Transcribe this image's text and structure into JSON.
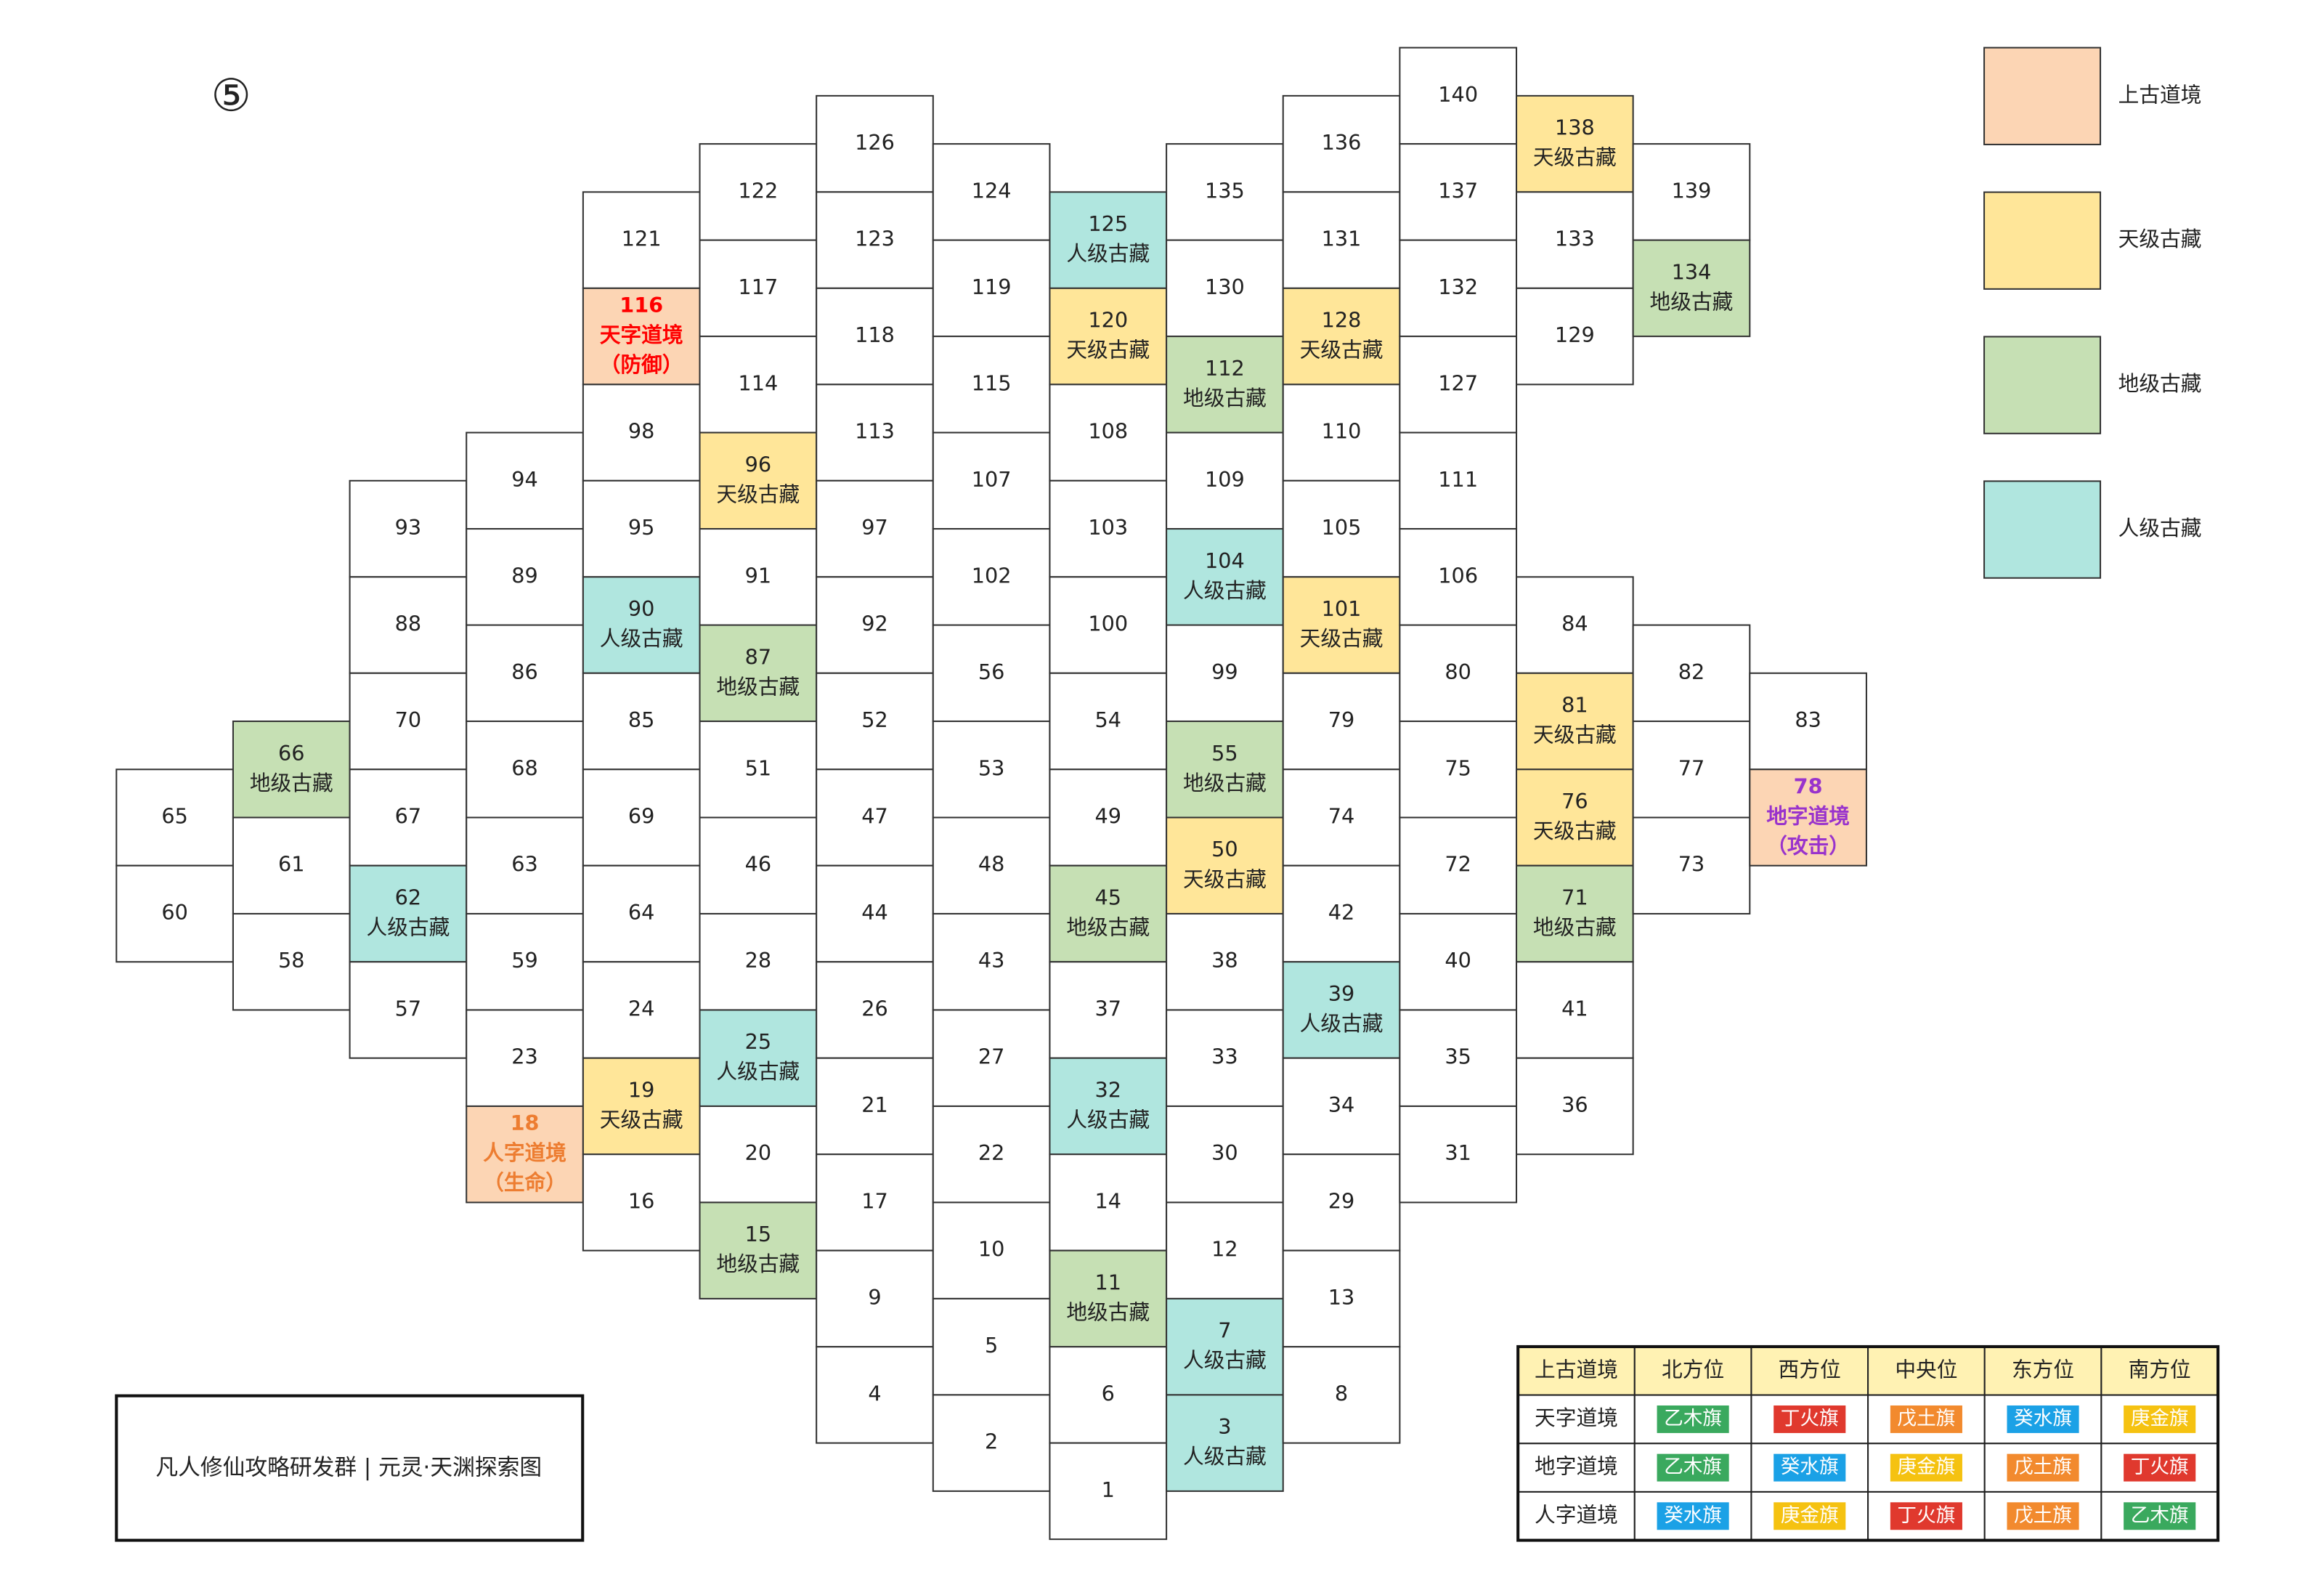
{
  "title_mark": "⑤",
  "caption": "凡人修仙攻略研发群 | 元灵·天渊探索图",
  "legend": [
    {
      "label": "上古道境",
      "color": "#fcd5b4"
    },
    {
      "label": "天级古藏",
      "color": "#ffe699"
    },
    {
      "label": "地级古藏",
      "color": "#c6e0b4"
    },
    {
      "label": "人级古藏",
      "color": "#b0e6df"
    }
  ],
  "columns": [
    [
      {
        "n": "65"
      },
      {
        "n": "60"
      }
    ],
    [
      {
        "n": "66",
        "t": "地级古藏",
        "k": 2
      },
      {
        "n": "61"
      },
      {
        "n": "58"
      }
    ],
    [
      {
        "n": "93"
      },
      {
        "n": "88"
      },
      {
        "n": "70"
      },
      {
        "n": "67"
      },
      {
        "n": "62",
        "t": "人级古藏",
        "k": 3
      },
      {
        "n": "57"
      }
    ],
    [
      {
        "n": "94"
      },
      {
        "n": "89"
      },
      {
        "n": "86"
      },
      {
        "n": "68"
      },
      {
        "n": "63"
      },
      {
        "n": "59"
      },
      {
        "n": "23"
      },
      {
        "n": "18",
        "t": "人字道境",
        "s": "（生命）",
        "k": 0,
        "c": "#ed7d31"
      }
    ],
    [
      {
        "n": "121"
      },
      {
        "n": "116",
        "t": "天字道境",
        "s": "（防御）",
        "k": 0,
        "c": "#ff0000"
      },
      {
        "n": "98"
      },
      {
        "n": "95"
      },
      {
        "n": "90",
        "t": "人级古藏",
        "k": 3
      },
      {
        "n": "85"
      },
      {
        "n": "69"
      },
      {
        "n": "64"
      },
      {
        "n": "24"
      },
      {
        "n": "19",
        "t": "天级古藏",
        "k": 1
      },
      {
        "n": "16"
      }
    ],
    [
      {
        "n": "122"
      },
      {
        "n": "117"
      },
      {
        "n": "114"
      },
      {
        "n": "96",
        "t": "天级古藏",
        "k": 1
      },
      {
        "n": "91"
      },
      {
        "n": "87",
        "t": "地级古藏",
        "k": 2
      },
      {
        "n": "51"
      },
      {
        "n": "46"
      },
      {
        "n": "28"
      },
      {
        "n": "25",
        "t": "人级古藏",
        "k": 3
      },
      {
        "n": "20"
      },
      {
        "n": "15",
        "t": "地级古藏",
        "k": 2
      }
    ],
    [
      {
        "n": "126"
      },
      {
        "n": "123"
      },
      {
        "n": "118"
      },
      {
        "n": "113"
      },
      {
        "n": "97"
      },
      {
        "n": "92"
      },
      {
        "n": "52"
      },
      {
        "n": "47"
      },
      {
        "n": "44"
      },
      {
        "n": "26"
      },
      {
        "n": "21"
      },
      {
        "n": "17"
      },
      {
        "n": "9"
      },
      {
        "n": "4"
      }
    ],
    [
      {
        "n": "124"
      },
      {
        "n": "119"
      },
      {
        "n": "115"
      },
      {
        "n": "107"
      },
      {
        "n": "102"
      },
      {
        "n": "56"
      },
      {
        "n": "53"
      },
      {
        "n": "48"
      },
      {
        "n": "43"
      },
      {
        "n": "27"
      },
      {
        "n": "22"
      },
      {
        "n": "10"
      },
      {
        "n": "5"
      },
      {
        "n": "2"
      }
    ],
    [
      {
        "n": "125",
        "t": "人级古藏",
        "k": 3
      },
      {
        "n": "120",
        "t": "天级古藏",
        "k": 1
      },
      {
        "n": "108"
      },
      {
        "n": "103"
      },
      {
        "n": "100"
      },
      {
        "n": "54"
      },
      {
        "n": "49"
      },
      {
        "n": "45",
        "t": "地级古藏",
        "k": 2
      },
      {
        "n": "37"
      },
      {
        "n": "32",
        "t": "人级古藏",
        "k": 3
      },
      {
        "n": "14"
      },
      {
        "n": "11",
        "t": "地级古藏",
        "k": 2
      },
      {
        "n": "6"
      },
      {
        "n": "1"
      }
    ],
    [
      {
        "n": "135"
      },
      {
        "n": "130"
      },
      {
        "n": "112",
        "t": "地级古藏",
        "k": 2
      },
      {
        "n": "109"
      },
      {
        "n": "104",
        "t": "人级古藏",
        "k": 3
      },
      {
        "n": "99"
      },
      {
        "n": "55",
        "t": "地级古藏",
        "k": 2
      },
      {
        "n": "50",
        "t": "天级古藏",
        "k": 1
      },
      {
        "n": "38"
      },
      {
        "n": "33"
      },
      {
        "n": "30"
      },
      {
        "n": "12"
      },
      {
        "n": "7",
        "t": "人级古藏",
        "k": 3
      },
      {
        "n": "3",
        "t": "人级古藏",
        "k": 3
      }
    ],
    [
      {
        "n": "136"
      },
      {
        "n": "131"
      },
      {
        "n": "128",
        "t": "天级古藏",
        "k": 1
      },
      {
        "n": "110"
      },
      {
        "n": "105"
      },
      {
        "n": "101",
        "t": "天级古藏",
        "k": 1
      },
      {
        "n": "79"
      },
      {
        "n": "74"
      },
      {
        "n": "42"
      },
      {
        "n": "39",
        "t": "人级古藏",
        "k": 3
      },
      {
        "n": "34"
      },
      {
        "n": "29"
      },
      {
        "n": "13"
      },
      {
        "n": "8"
      }
    ],
    [
      {
        "n": "140"
      },
      {
        "n": "137"
      },
      {
        "n": "132"
      },
      {
        "n": "127"
      },
      {
        "n": "111"
      },
      {
        "n": "106"
      },
      {
        "n": "80"
      },
      {
        "n": "75"
      },
      {
        "n": "72"
      },
      {
        "n": "40"
      },
      {
        "n": "35"
      },
      {
        "n": "31"
      }
    ],
    [
      {
        "n": "138",
        "t": "天级古藏",
        "k": 1
      },
      {
        "n": "133"
      },
      {
        "n": "129"
      },
      {
        "n": "84"
      },
      {
        "n": "81",
        "t": "天级古藏",
        "k": 1
      },
      {
        "n": "76",
        "t": "天级古藏",
        "k": 1
      },
      {
        "n": "71",
        "t": "地级古藏",
        "k": 2
      },
      {
        "n": "41"
      },
      {
        "n": "36"
      }
    ],
    [
      {
        "n": "139"
      },
      {
        "n": "134",
        "t": "地级古藏",
        "k": 2
      },
      {
        "n": "82"
      },
      {
        "n": "77"
      },
      {
        "n": "73"
      }
    ],
    [
      {
        "n": "83"
      },
      {
        "n": "78",
        "t": "地字道境",
        "s": "（攻击）",
        "k": 0,
        "c": "#9933cc"
      }
    ]
  ],
  "table": {
    "header": [
      "上古道境",
      "北方位",
      "西方位",
      "中央位",
      "东方位",
      "南方位"
    ],
    "rows": [
      {
        "name": "天字道境",
        "flags": [
          "乙木旗",
          "丁火旗",
          "戊土旗",
          "癸水旗",
          "庚金旗"
        ]
      },
      {
        "name": "地字道境",
        "flags": [
          "乙木旗",
          "癸水旗",
          "庚金旗",
          "戊土旗",
          "丁火旗"
        ]
      },
      {
        "name": "人字道境",
        "flags": [
          "癸水旗",
          "庚金旗",
          "丁火旗",
          "戊土旗",
          "乙木旗"
        ]
      }
    ],
    "header_color": "#fff2b3",
    "flag_colors": {
      "乙木旗": "#3aa95e",
      "丁火旗": "#e0392e",
      "戊土旗": "#f28a2e",
      "癸水旗": "#1ba1e6",
      "庚金旗": "#f5c211"
    }
  }
}
